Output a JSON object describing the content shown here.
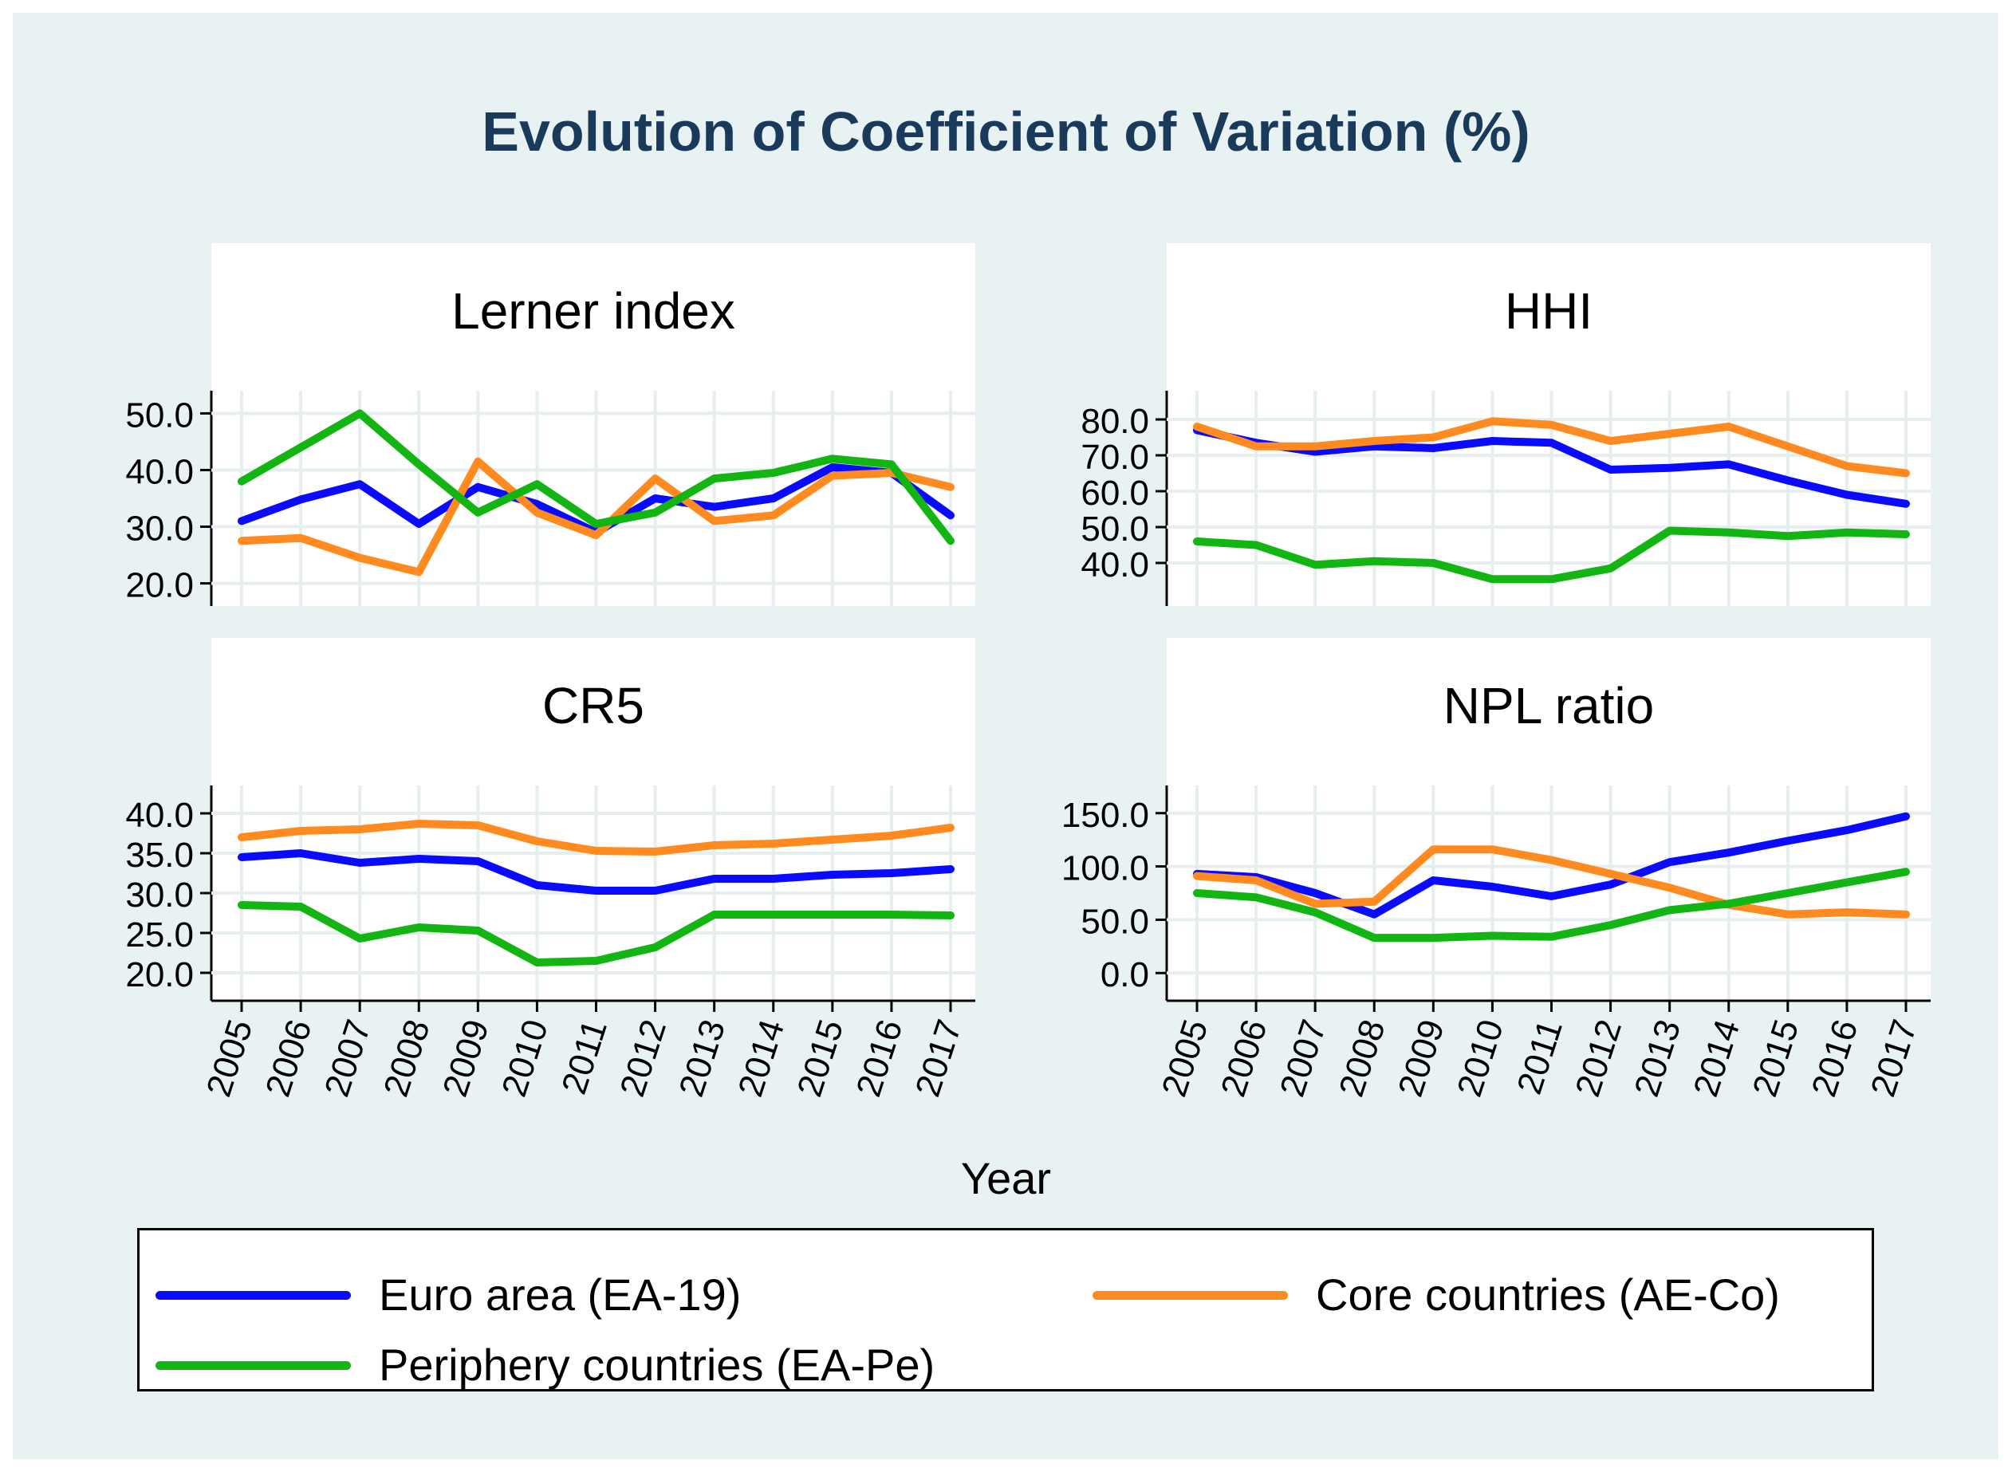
{
  "title": "Evolution of Coefficient of Variation (%)",
  "xlabel": "Year",
  "colors": {
    "background": "#e9f2f3",
    "title": "#1a3a5c"
  },
  "legend": [
    {
      "label": "Euro area (EA-19)",
      "color": "#0a0aff"
    },
    {
      "label": "Core countries (AE-Co)",
      "color": "#ff8a1f"
    },
    {
      "label": "Periphery countries (EA-Pe)",
      "color": "#12b512"
    }
  ],
  "chart_data": [
    {
      "type": "line",
      "title": "Lerner index",
      "x": [
        "2005",
        "2006",
        "2007",
        "2008",
        "2009",
        "2010",
        "2011",
        "2012",
        "2013",
        "2014",
        "2015",
        "2016",
        "2017"
      ],
      "yticks": [
        "20.0",
        "30.0",
        "40.0",
        "50.0"
      ],
      "ylim": [
        16,
        54
      ],
      "series": [
        {
          "name": "Euro area (EA-19)",
          "color": "#0a0aff",
          "values": [
            31.0,
            34.8,
            37.5,
            30.5,
            37.0,
            34.0,
            29.0,
            35.0,
            33.5,
            35.0,
            40.5,
            39.5,
            32.0
          ]
        },
        {
          "name": "Core countries (AE-Co)",
          "color": "#ff8a1f",
          "values": [
            27.5,
            28.0,
            24.5,
            22.0,
            41.5,
            32.5,
            28.5,
            38.5,
            31.0,
            32.0,
            39.0,
            39.5,
            37.0
          ]
        },
        {
          "name": "Periphery countries (EA-Pe)",
          "color": "#12b512",
          "values": [
            38.0,
            44.0,
            50.0,
            41.0,
            32.5,
            37.5,
            30.5,
            32.5,
            38.5,
            39.5,
            42.0,
            41.0,
            27.5
          ]
        }
      ]
    },
    {
      "type": "line",
      "title": "HHI",
      "x": [
        "2005",
        "2006",
        "2007",
        "2008",
        "2009",
        "2010",
        "2011",
        "2012",
        "2013",
        "2014",
        "2015",
        "2016",
        "2017"
      ],
      "yticks": [
        "40.0",
        "50.0",
        "60.0",
        "70.0",
        "80.0"
      ],
      "ylim": [
        28,
        88
      ],
      "series": [
        {
          "name": "Euro area (EA-19)",
          "color": "#0a0aff",
          "values": [
            77.0,
            73.5,
            71.0,
            72.5,
            72.0,
            74.0,
            73.5,
            66.0,
            66.5,
            67.5,
            63.0,
            59.0,
            56.5
          ]
        },
        {
          "name": "Core countries (AE-Co)",
          "color": "#ff8a1f",
          "values": [
            78.0,
            72.5,
            72.5,
            74.0,
            75.0,
            79.5,
            78.5,
            74.0,
            76.0,
            78.0,
            72.5,
            67.0,
            65.0
          ]
        },
        {
          "name": "Periphery countries (EA-Pe)",
          "color": "#12b512",
          "values": [
            46.0,
            45.0,
            39.5,
            40.5,
            40.0,
            35.5,
            35.5,
            38.5,
            49.0,
            48.5,
            47.5,
            48.5,
            48.0
          ]
        }
      ]
    },
    {
      "type": "line",
      "title": "CR5",
      "x": [
        "2005",
        "2006",
        "2007",
        "2008",
        "2009",
        "2010",
        "2011",
        "2012",
        "2013",
        "2014",
        "2015",
        "2016",
        "2017"
      ],
      "yticks": [
        "20.0",
        "25.0",
        "30.0",
        "35.0",
        "40.0"
      ],
      "ylim": [
        16.5,
        43.5
      ],
      "series": [
        {
          "name": "Euro area (EA-19)",
          "color": "#0a0aff",
          "values": [
            34.5,
            35.0,
            33.8,
            34.3,
            34.0,
            31.0,
            30.3,
            30.3,
            31.8,
            31.8,
            32.3,
            32.5,
            33.0
          ]
        },
        {
          "name": "Core countries (AE-Co)",
          "color": "#ff8a1f",
          "values": [
            37.0,
            37.8,
            38.0,
            38.7,
            38.5,
            36.5,
            35.3,
            35.2,
            36.0,
            36.2,
            36.7,
            37.2,
            38.2
          ]
        },
        {
          "name": "Periphery countries (EA-Pe)",
          "color": "#12b512",
          "values": [
            28.5,
            28.3,
            24.3,
            25.7,
            25.3,
            21.3,
            21.5,
            23.2,
            27.3,
            27.3,
            27.3,
            27.3,
            27.2
          ]
        }
      ]
    },
    {
      "type": "line",
      "title": "NPL ratio",
      "x": [
        "2005",
        "2006",
        "2007",
        "2008",
        "2009",
        "2010",
        "2011",
        "2012",
        "2013",
        "2014",
        "2015",
        "2016",
        "2017"
      ],
      "yticks": [
        "0.0",
        "50.0",
        "100.0",
        "150.0"
      ],
      "ylim": [
        -26,
        176
      ],
      "series": [
        {
          "name": "Euro area (EA-19)",
          "color": "#0a0aff",
          "values": [
            93.0,
            90.0,
            75.0,
            55.0,
            87.0,
            81.0,
            72.0,
            83.0,
            104.0,
            113.0,
            124.0,
            134.0,
            147.0
          ]
        },
        {
          "name": "Core countries (AE-Co)",
          "color": "#ff8a1f",
          "values": [
            91.0,
            87.0,
            65.0,
            67.0,
            116.0,
            116.0,
            106.0,
            93.0,
            80.0,
            64.0,
            55.0,
            57.0,
            55.0
          ]
        },
        {
          "name": "Periphery countries (EA-Pe)",
          "color": "#12b512",
          "values": [
            75.0,
            71.0,
            57.0,
            33.0,
            33.0,
            35.0,
            34.0,
            45.0,
            59.0,
            65.0,
            75.0,
            85.0,
            95.0
          ]
        }
      ]
    }
  ]
}
